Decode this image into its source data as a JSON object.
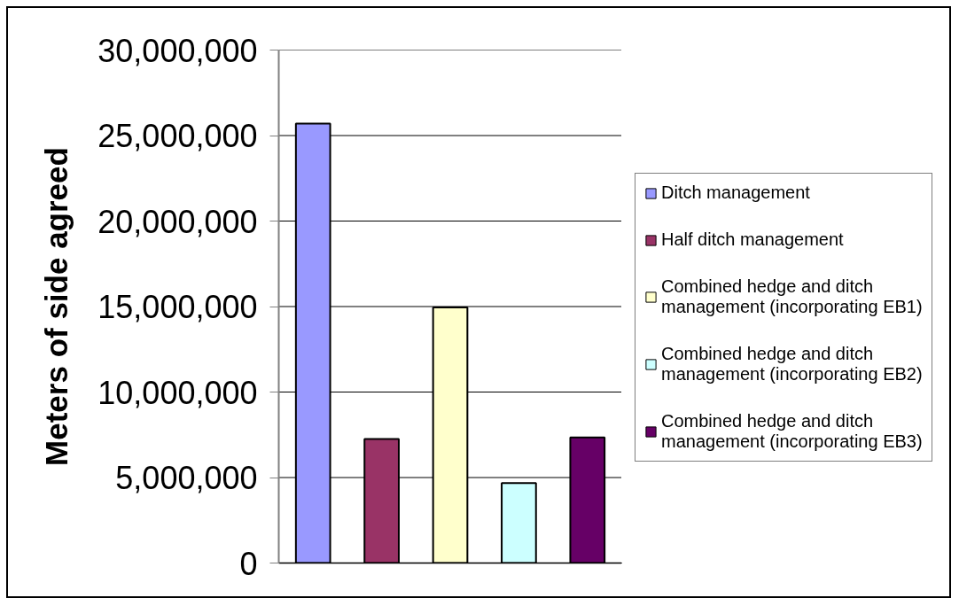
{
  "chart_data": {
    "type": "bar",
    "ylabel": "Meters of side agreed",
    "categories": [
      null,
      null,
      null,
      null,
      null
    ],
    "series": [
      {
        "name": "Ditch management",
        "color": "#9999ff",
        "values": [
          25700000,
          null,
          null,
          null,
          null
        ]
      },
      {
        "name": "Half ditch management",
        "color": "#993366",
        "values": [
          null,
          7260000,
          null,
          null,
          null
        ]
      },
      {
        "name": "Combined hedge and ditch management (incorporating EB1)",
        "color": "#ffffcc",
        "values": [
          null,
          null,
          14950000,
          null,
          null
        ]
      },
      {
        "name": "Combined hedge and ditch management (incorporating EB2)",
        "color": "#ccffff",
        "values": [
          null,
          null,
          null,
          4680000,
          null
        ]
      },
      {
        "name": "Combined hedge and ditch management (incorporating EB3)",
        "color": "#660066",
        "values": [
          null,
          null,
          null,
          null,
          7350000
        ]
      }
    ],
    "ylim": [
      0,
      30000000
    ],
    "yticks": [
      0,
      {
        "value": 5000000,
        "label": "5,000,000"
      },
      {
        "value": 10000000,
        "label": "10,000,000"
      },
      {
        "value": 15000000,
        "label": "15,000,000"
      },
      {
        "value": 20000000,
        "label": "20,000,000"
      },
      {
        "value": 25000000,
        "label": "25,000,000"
      },
      {
        "value": 30000000,
        "label": "30,000,000"
      }
    ],
    "grid": "y",
    "legend": "right",
    "tick_labels": "y"
  }
}
